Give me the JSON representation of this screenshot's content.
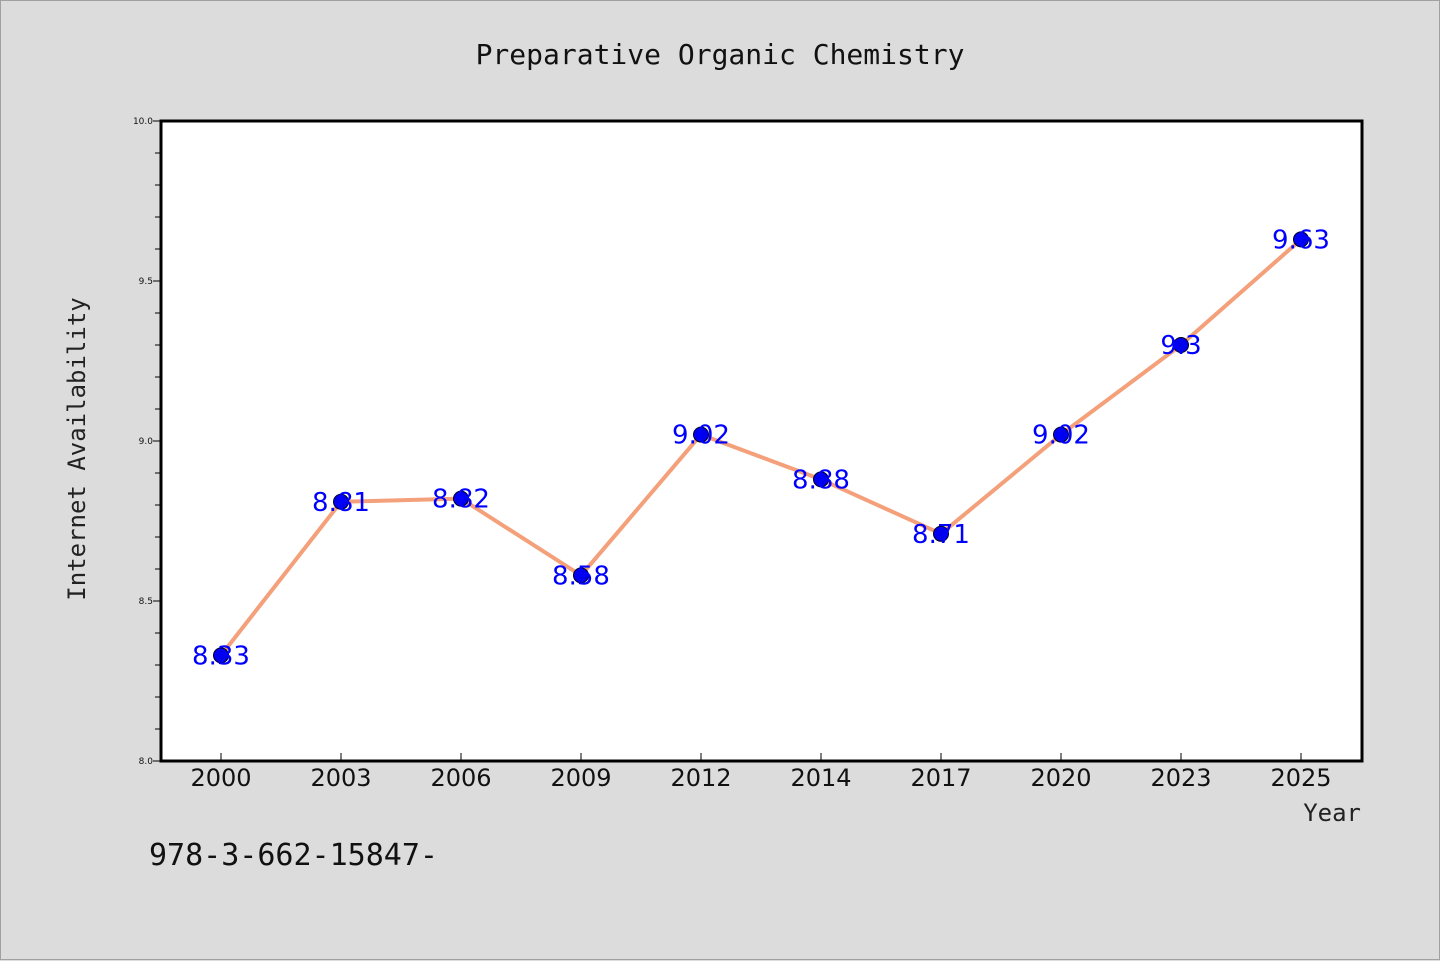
{
  "chart_data": {
    "type": "line",
    "title": "Preparative Organic Chemistry",
    "xlabel": "Year",
    "ylabel": "Internet Availability",
    "categories": [
      "2000",
      "2003",
      "2006",
      "2009",
      "2012",
      "2014",
      "2017",
      "2020",
      "2023",
      "2025"
    ],
    "series": [
      {
        "values": [
          8.33,
          8.81,
          8.82,
          8.58,
          9.02,
          8.88,
          8.71,
          9.02,
          9.3,
          9.63
        ],
        "data_labels": [
          "8.33",
          "8.81",
          "8.82",
          "8.58",
          "9.02",
          "8.88",
          "8.71",
          "9.02",
          "9.3",
          "9.63"
        ],
        "line_color": "#f4a07a",
        "marker_color": "#0000ee"
      }
    ],
    "ylim": [
      8.0,
      10.0
    ],
    "yticks": [
      "8.0",
      "8.5",
      "9.0",
      "9.5",
      "10.0"
    ],
    "grid": false,
    "legend": "none",
    "label_color": "#0000ff"
  },
  "footnote": "978-3-662-15847-"
}
